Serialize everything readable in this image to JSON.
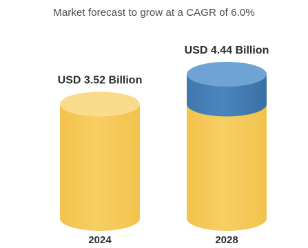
{
  "header": {
    "title": "Market forecast to grow at a CAGR of 6.0%"
  },
  "colors": {
    "base_body": "#f7cf63",
    "base_top": "#f8dc8c",
    "base_bottom": "#f2c24c",
    "growth_body": "#4a86bd",
    "growth_top": "#6ea3d3",
    "label_text": "#2b2b2b",
    "title_text": "#4a4a4a"
  },
  "chart_data": {
    "type": "bar",
    "style": "3d-cylinder",
    "title": "Market forecast to grow at a CAGR of 6.0%",
    "categories": [
      "2024",
      "2028"
    ],
    "values": [
      3.52,
      4.44
    ],
    "value_labels": [
      "USD 3.52 Billion",
      "USD 4.44 Billion"
    ],
    "unit": "USD Billion",
    "highlight_growth_segment": true,
    "grid": false,
    "legend": "none"
  }
}
